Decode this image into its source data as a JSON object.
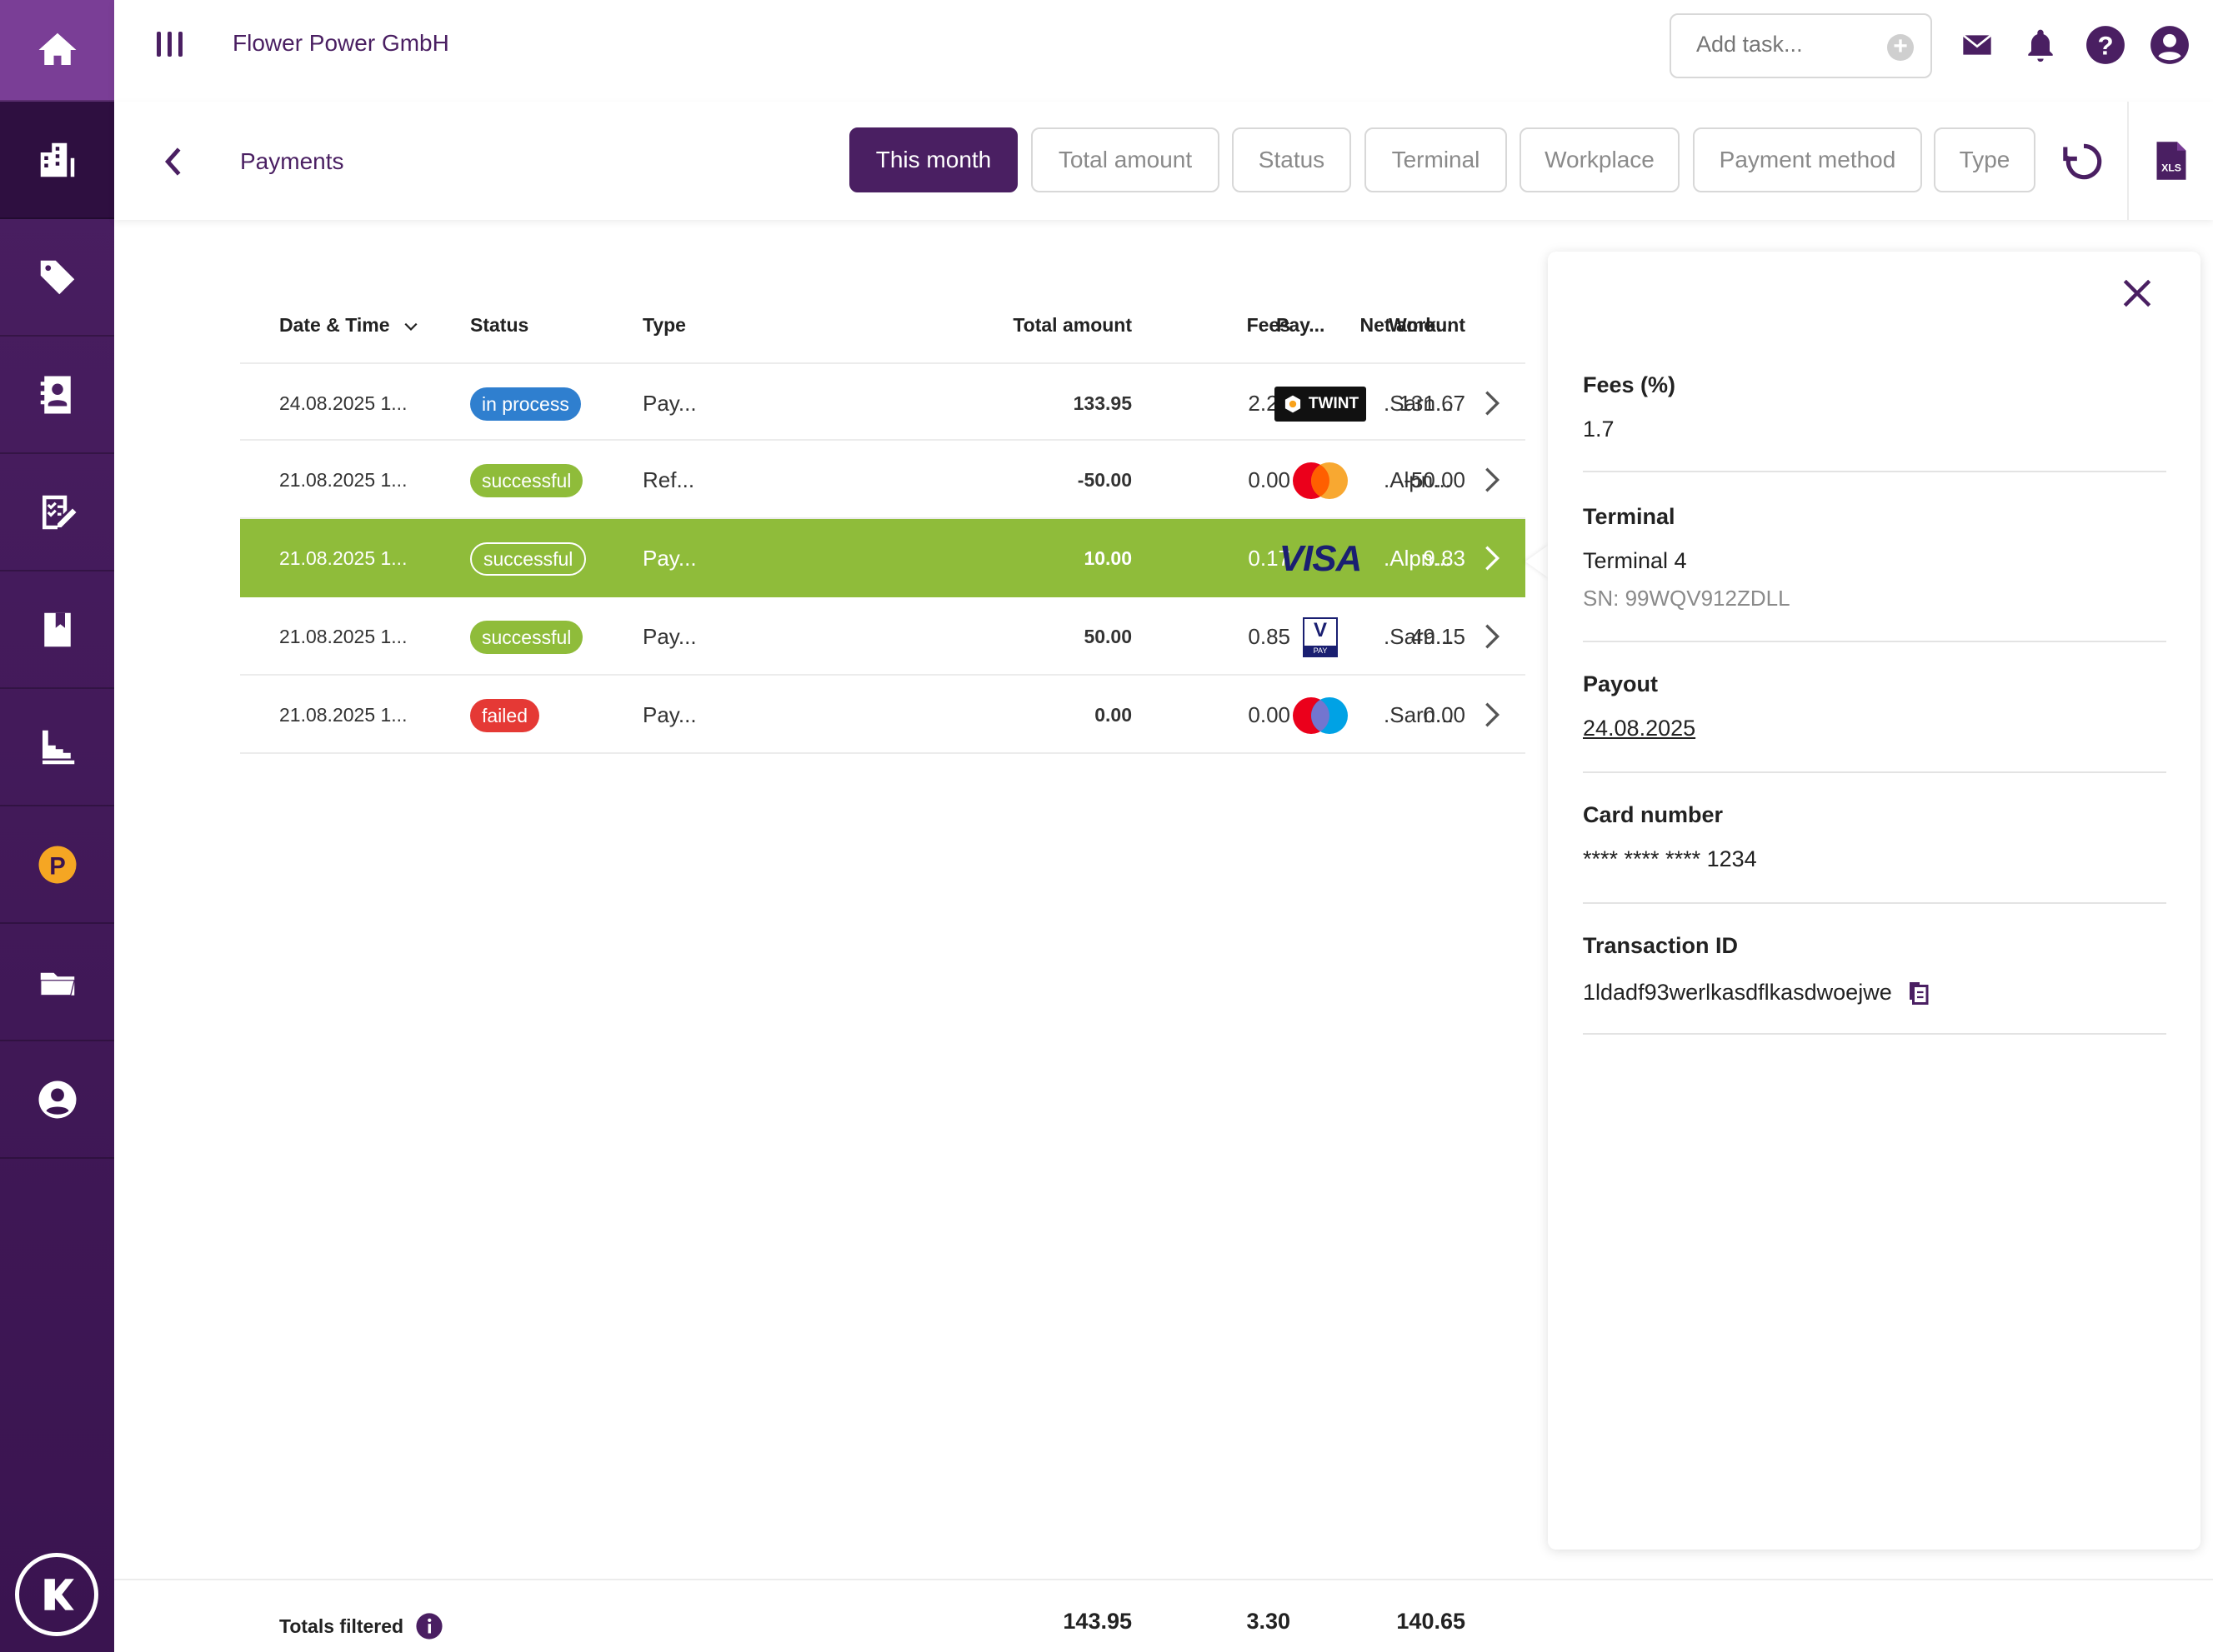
{
  "app": {
    "company": "Flower Power GmbH"
  },
  "topbar": {
    "add_task_placeholder": "Add task..."
  },
  "page": {
    "title": "Payments"
  },
  "filters": [
    {
      "label": "This month",
      "selected": true
    },
    {
      "label": "Total amount"
    },
    {
      "label": "Status"
    },
    {
      "label": "Terminal"
    },
    {
      "label": "Workplace"
    },
    {
      "label": "Payment method"
    },
    {
      "label": "Type"
    }
  ],
  "export": {
    "label": "XLS"
  },
  "table": {
    "headers": {
      "date": "Date & Time",
      "status": "Status",
      "type": "Type",
      "total": "Total amount",
      "fees": "Fees",
      "net": "Net amount",
      "pay": "Pay...",
      "work": "Work..."
    },
    "rows": [
      {
        "date": "24.08.2025 1...",
        "status": "in process",
        "type": "Pay...",
        "total": "133.95",
        "fees": "2.28",
        "net": "131.67",
        "method": "twint",
        "method_label": "TWINT",
        "work": ".Sarn..."
      },
      {
        "date": "21.08.2025 1...",
        "status": "successful",
        "type": "Ref...",
        "total": "-50.00",
        "fees": "0.00",
        "net": "-50.00",
        "method": "mastercard",
        "work": ".Alpn..."
      },
      {
        "date": "21.08.2025 1...",
        "status": "successful",
        "type": "Pay...",
        "total": "10.00",
        "fees": "0.17",
        "net": "9.83",
        "method": "visa",
        "method_label": "VISA",
        "work": ".Alpn...",
        "selected": true
      },
      {
        "date": "21.08.2025 1...",
        "status": "successful",
        "type": "Pay...",
        "total": "50.00",
        "fees": "0.85",
        "net": "49.15",
        "method": "vpay",
        "method_label": "V",
        "method_sub": "PAY",
        "work": ".Sarn..."
      },
      {
        "date": "21.08.2025 1...",
        "status": "failed",
        "type": "Pay...",
        "total": "0.00",
        "fees": "0.00",
        "net": "0.00",
        "method": "maestro",
        "work": ".Sarn..."
      }
    ]
  },
  "footer": {
    "label": "Totals filtered",
    "total": "143.95",
    "fees": "3.30",
    "net": "140.65"
  },
  "detail": {
    "fees_label": "Fees (%)",
    "fees_value": "1.7",
    "terminal_label": "Terminal",
    "terminal_value": "Terminal 4",
    "terminal_sn": "SN: 99WQV912ZDLL",
    "payout_label": "Payout",
    "payout_value": "24.08.2025",
    "card_label": "Card number",
    "card_value": "**** **** **** 1234",
    "txn_label": "Transaction ID",
    "txn_value": "1ldadf93werlkasdflkasdwoejwe"
  },
  "colors": {
    "brand": "#4a1f62",
    "success": "#8fbc3a",
    "info": "#2f7fcf",
    "danger": "#e53935"
  },
  "icons": [
    "home-icon",
    "building-icon",
    "tag-icon",
    "contacts-icon",
    "checklist-icon",
    "bookmark-icon",
    "stats-icon",
    "points-icon",
    "folder-icon",
    "user-icon",
    "mail-icon",
    "bell-icon",
    "help-icon",
    "account-icon"
  ]
}
